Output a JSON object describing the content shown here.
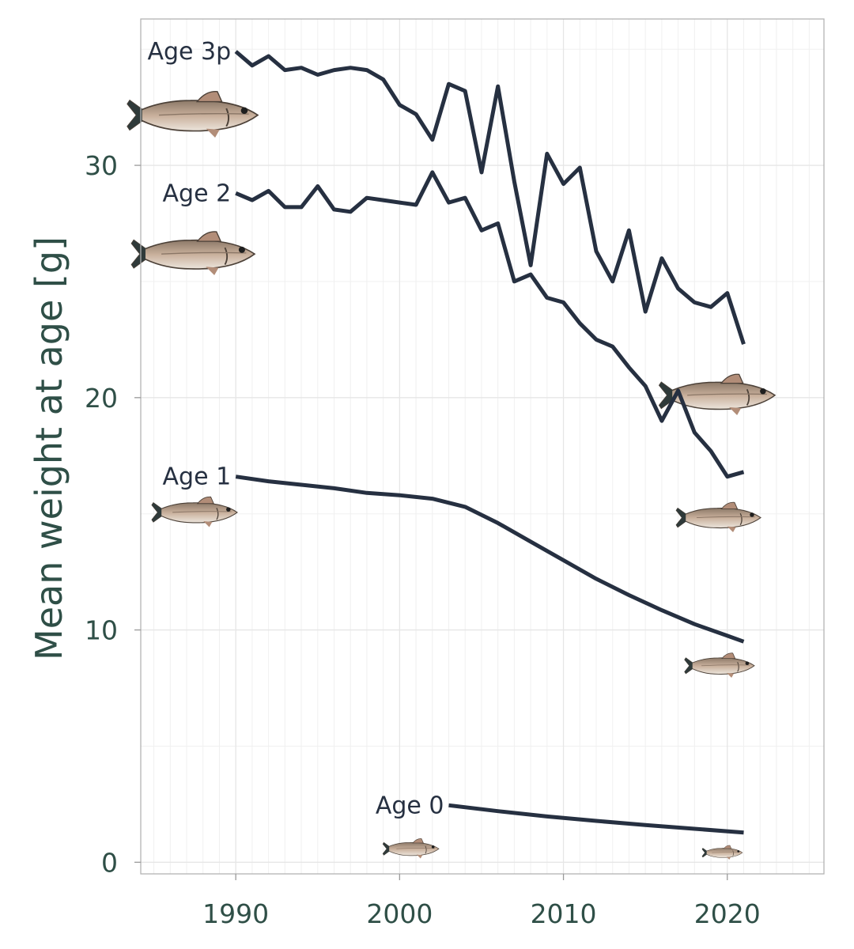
{
  "chart_data": {
    "type": "line",
    "title": "",
    "xlabel": "",
    "ylabel": "Mean weight at age [g]",
    "xlim": [
      1984.2,
      2025.9
    ],
    "ylim": [
      -0.5,
      36.3
    ],
    "xticks": [
      1990,
      2000,
      2010,
      2020
    ],
    "yticks": [
      0,
      10,
      20,
      30
    ],
    "grid": true,
    "legend": "none",
    "colors": {
      "line": "#263041",
      "axis_text": "#2f4f47",
      "grid": "#e6e6e6"
    },
    "icons": [
      "fish-icon"
    ],
    "series": [
      {
        "name": "Age 3p",
        "label": "Age 3p",
        "x": [
          1990,
          1991,
          1992,
          1993,
          1994,
          1995,
          1996,
          1997,
          1998,
          1999,
          2000,
          2001,
          2002,
          2003,
          2004,
          2005,
          2006,
          2007,
          2008,
          2009,
          2010,
          2011,
          2012,
          2013,
          2014,
          2015,
          2016,
          2017,
          2018,
          2019,
          2020,
          2021
        ],
        "values": [
          34.9,
          34.3,
          34.7,
          34.1,
          34.2,
          33.9,
          34.1,
          34.2,
          34.1,
          33.7,
          32.6,
          32.2,
          31.1,
          33.5,
          33.2,
          29.7,
          33.4,
          29.3,
          25.7,
          30.5,
          29.2,
          29.9,
          26.3,
          25.0,
          27.2,
          23.7,
          26.0,
          24.7,
          24.1,
          23.9,
          24.5,
          22.3
        ]
      },
      {
        "name": "Age 2",
        "label": "Age 2",
        "x": [
          1990,
          1991,
          1992,
          1993,
          1994,
          1995,
          1996,
          1997,
          1998,
          1999,
          2000,
          2001,
          2002,
          2003,
          2004,
          2005,
          2006,
          2007,
          2008,
          2009,
          2010,
          2011,
          2012,
          2013,
          2014,
          2015,
          2016,
          2017,
          2018,
          2019,
          2020,
          2021
        ],
        "values": [
          28.8,
          28.5,
          28.9,
          28.2,
          28.2,
          29.1,
          28.1,
          28.0,
          28.6,
          28.5,
          28.4,
          28.3,
          29.7,
          28.4,
          28.6,
          27.2,
          27.5,
          25.0,
          25.3,
          24.3,
          24.1,
          23.2,
          22.5,
          22.2,
          21.3,
          20.5,
          19.0,
          20.3,
          18.5,
          17.7,
          16.6,
          16.8
        ]
      },
      {
        "name": "Age 1",
        "label": "Age 1",
        "x": [
          1990,
          1992,
          1994,
          1996,
          1998,
          2000,
          2002,
          2004,
          2006,
          2008,
          2010,
          2012,
          2014,
          2016,
          2018,
          2020,
          2021
        ],
        "values": [
          16.6,
          16.4,
          16.25,
          16.1,
          15.9,
          15.8,
          15.65,
          15.3,
          14.6,
          13.8,
          13.0,
          12.2,
          11.5,
          10.85,
          10.25,
          9.75,
          9.5
        ]
      },
      {
        "name": "Age 0",
        "label": "Age 0",
        "x": [
          2003,
          2006,
          2009,
          2012,
          2015,
          2018,
          2021
        ],
        "values": [
          2.45,
          2.2,
          1.97,
          1.78,
          1.6,
          1.44,
          1.28
        ]
      }
    ]
  }
}
